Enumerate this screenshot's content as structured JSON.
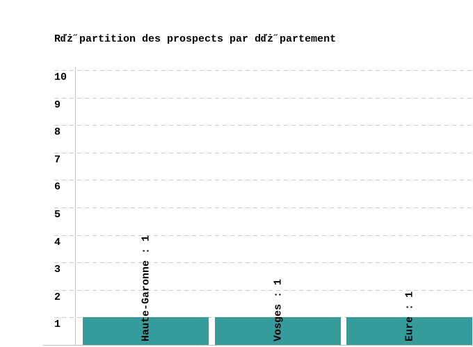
{
  "chart": {
    "title": "Rďż˝partition des prospects par dďż˝partement",
    "colors": {
      "background": "#ffffff",
      "bar": "#359b9b",
      "gridline": "#cccccc",
      "axis": "#c0c0c0",
      "text": "#000000"
    }
  },
  "chart_data": {
    "type": "bar",
    "title": "Rďż˝partition des prospects par dďż˝partement",
    "categories": [
      "Haute-Garonne",
      "Vosges",
      "Eure"
    ],
    "values": [
      1,
      1,
      1
    ],
    "bar_labels": [
      "Haute-Garonne : 1",
      "Vosges : 1",
      "Eure : 1"
    ],
    "bar_label_rotation": -90,
    "xlabel": "",
    "ylabel": "",
    "ylim": [
      0,
      10
    ],
    "y_ticks": [
      1,
      2,
      3,
      4,
      5,
      6,
      7,
      8,
      9,
      10
    ],
    "grid": "horizontal-dashed",
    "legend": "none",
    "bar_color": "#359b9b"
  }
}
